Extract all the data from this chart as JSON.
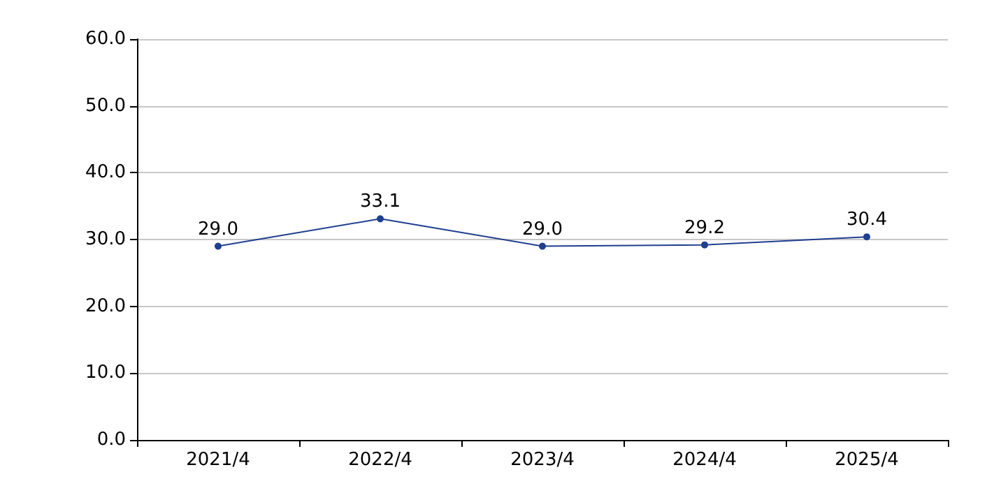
{
  "chart_data": {
    "type": "line",
    "categories": [
      "2021/4",
      "2022/4",
      "2023/4",
      "2024/4",
      "2025/4"
    ],
    "series": [
      {
        "color": "#1f3f8f",
        "values": [
          29.0,
          33.1,
          29.0,
          29.2,
          30.4
        ],
        "value_labels": [
          "29.0",
          "33.1",
          "29.0",
          "29.2",
          "30.4"
        ]
      }
    ],
    "ylim": [
      0,
      60
    ],
    "yticks": [
      {
        "value": 0,
        "label": "0.0"
      },
      {
        "value": 10,
        "label": "10.0"
      },
      {
        "value": 20,
        "label": "20.0"
      },
      {
        "value": 30,
        "label": "30.0"
      },
      {
        "value": 40,
        "label": "40.0"
      },
      {
        "value": 50,
        "label": "50.0"
      },
      {
        "value": 60,
        "label": "60.0"
      }
    ],
    "grid": "y",
    "marker": "circle",
    "line_style": "solid"
  }
}
